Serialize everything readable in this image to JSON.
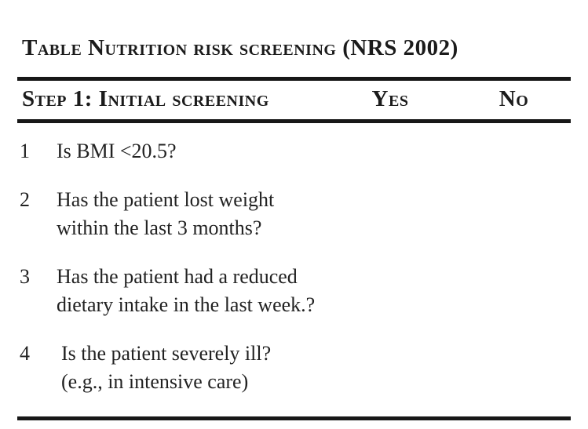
{
  "title": "Table Nutrition risk screening (NRS 2002)",
  "table": {
    "header": {
      "step_label": "Step 1: Initial screening",
      "yes_label": "Yes",
      "no_label": "No"
    },
    "rows": [
      {
        "num": "1",
        "line1": "Is BMI <20.5?",
        "line2": ""
      },
      {
        "num": "2",
        "line1": "Has the patient lost weight",
        "line2": "within the last 3 months?"
      },
      {
        "num": "3",
        "line1": "Has the patient had a reduced",
        "line2": "dietary intake in the last week.?"
      },
      {
        "num": "4",
        "line1": "Is the patient severely ill?",
        "line2": "(e.g., in intensive care)"
      }
    ]
  },
  "colors": {
    "background": "#ffffff",
    "text": "#1e1e1e",
    "rule": "#171717"
  }
}
